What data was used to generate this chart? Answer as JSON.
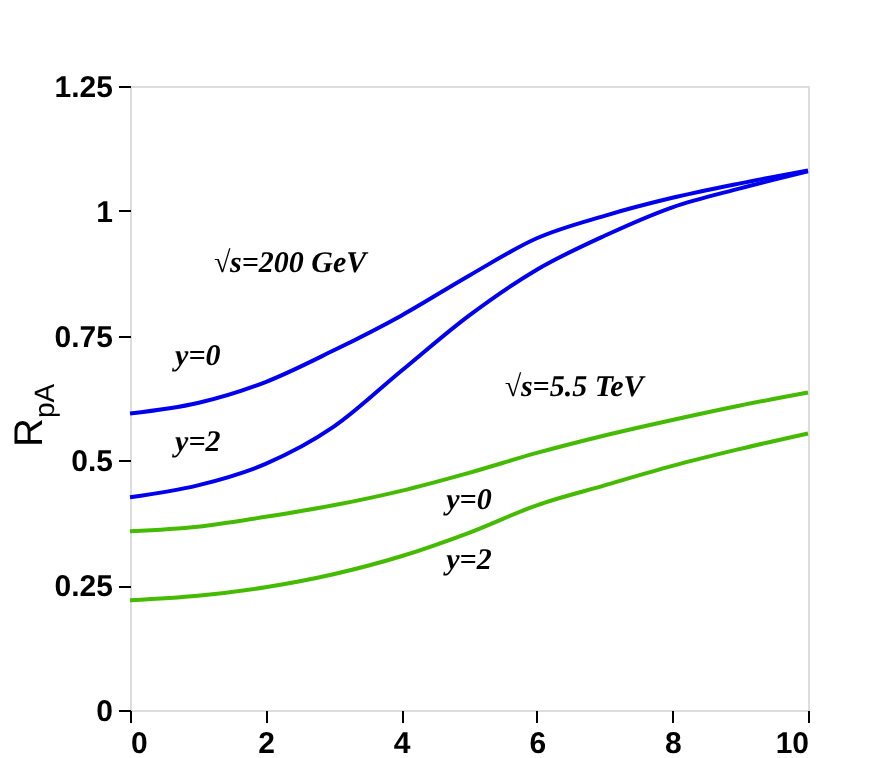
{
  "chart_data": {
    "type": "line",
    "ylabel": "R$_{pA}$",
    "x": [
      0,
      1,
      2,
      3,
      4,
      5,
      6,
      7,
      8,
      9,
      10
    ],
    "series": [
      {
        "name": "y=0",
        "color": "#0000ee",
        "values": [
          0.594,
          0.615,
          0.657,
          0.72,
          0.79,
          0.87,
          0.945,
          0.99,
          1.026,
          1.055,
          1.081
        ]
      },
      {
        "name": "y=2",
        "color": "#0000ee",
        "values": [
          0.426,
          0.45,
          0.493,
          0.567,
          0.679,
          0.79,
          0.882,
          0.95,
          1.007,
          1.045,
          1.079
        ]
      },
      {
        "name": "y=0",
        "color": "#44bb00",
        "values": [
          0.358,
          0.367,
          0.387,
          0.41,
          0.439,
          0.475,
          0.515,
          0.55,
          0.581,
          0.61,
          0.636
        ]
      },
      {
        "name": "y=2",
        "color": "#44bb00",
        "values": [
          0.22,
          0.229,
          0.246,
          0.272,
          0.308,
          0.355,
          0.41,
          0.45,
          0.489,
          0.523,
          0.554
        ]
      }
    ],
    "xlim": [
      0,
      10
    ],
    "ylim": [
      0,
      1.25
    ],
    "xticks": [
      0,
      2,
      4,
      6,
      8,
      10
    ],
    "yticks": [
      0,
      0.25,
      0.5,
      0.75,
      1,
      1.25
    ],
    "annotations": [
      "√s=200 GeV",
      "√s=5.5 TeV"
    ],
    "grid": false,
    "legend": false,
    "marker": "none",
    "line_style": "solid"
  }
}
